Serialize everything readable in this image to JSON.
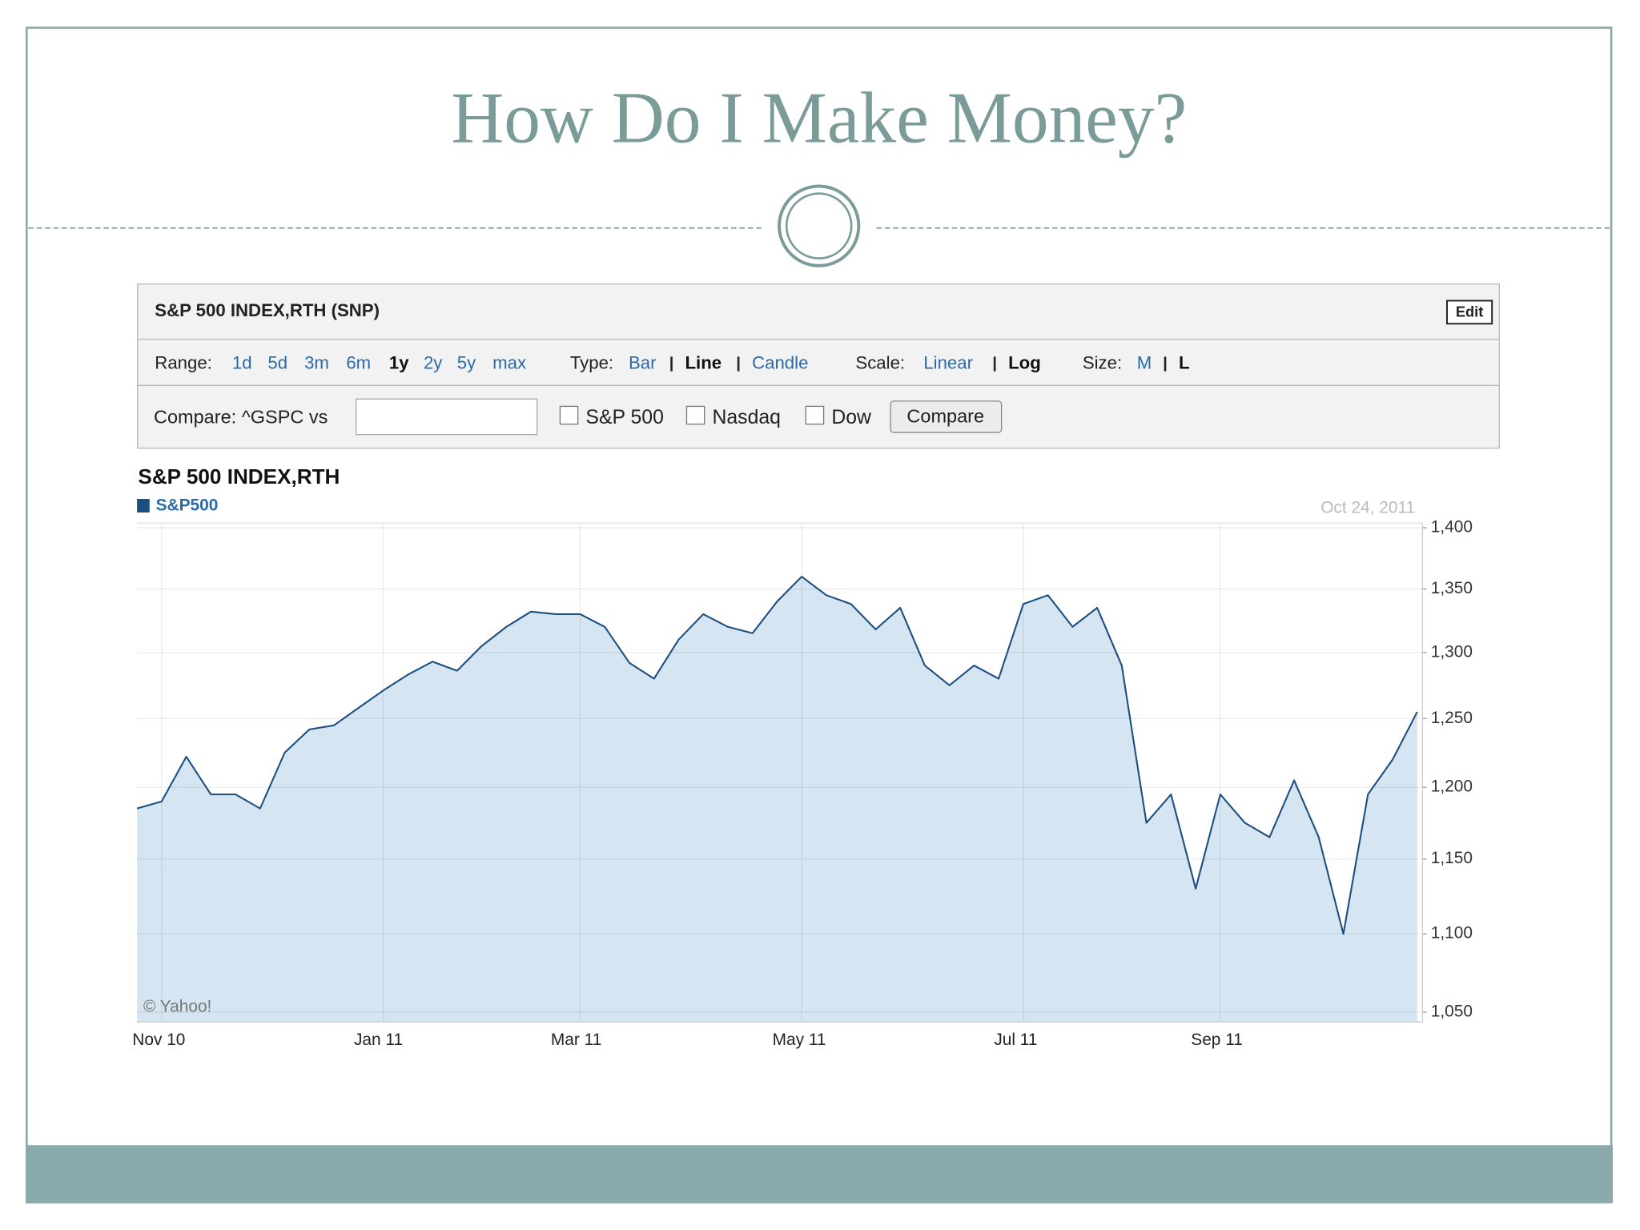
{
  "slide": {
    "title": "How Do I Make Money?"
  },
  "panel": {
    "header": "S&P 500 INDEX,RTH (SNP)",
    "edit": "Edit",
    "range": {
      "label": "Range:",
      "options": [
        "1d",
        "5d",
        "3m",
        "6m",
        "1y",
        "2y",
        "5y",
        "max"
      ],
      "selected": 4
    },
    "type": {
      "label": "Type:",
      "options": [
        "Bar",
        "Line",
        "Candle"
      ],
      "selected": 1
    },
    "scale": {
      "label": "Scale:",
      "options": [
        "Linear",
        "Log"
      ],
      "selected": 1
    },
    "size": {
      "label": "Size:",
      "options": [
        "M",
        "L"
      ],
      "selected": 1
    },
    "compare": {
      "label": "Compare: ^GSPC vs",
      "checkboxes": [
        "S&P 500",
        "Nasdaq",
        "Dow"
      ],
      "button": "Compare"
    }
  },
  "chart_data": {
    "type": "area",
    "title": "S&P 500 INDEX,RTH",
    "date_label": "Oct 24, 2011",
    "credit": "© Yahoo!",
    "categories": [
      null,
      "Nov 10",
      null,
      null,
      null,
      null,
      null,
      null,
      null,
      null,
      "Jan 11",
      null,
      null,
      null,
      null,
      null,
      null,
      null,
      "Mar 11",
      null,
      null,
      null,
      null,
      null,
      null,
      null,
      null,
      "May 11",
      null,
      null,
      null,
      null,
      null,
      null,
      null,
      null,
      "Jul 11",
      null,
      null,
      null,
      null,
      null,
      null,
      null,
      "Sep 11",
      null,
      null,
      null,
      null,
      null,
      null,
      null,
      null
    ],
    "series": [
      {
        "name": "S&P500",
        "color": "#1c4f80",
        "fill": "#d5e5f1",
        "values": [
          1185,
          1190,
          1222,
          1195,
          1195,
          1185,
          1225,
          1242,
          1245,
          1258,
          1271,
          1283,
          1293,
          1286,
          1305,
          1320,
          1332,
          1330,
          1330,
          1320,
          1292,
          1280,
          1310,
          1330,
          1320,
          1315,
          1340,
          1360,
          1345,
          1338,
          1318,
          1335,
          1290,
          1275,
          1290,
          1280,
          1338,
          1345,
          1320,
          1335,
          1290,
          1175,
          1195,
          1130,
          1195,
          1175,
          1165,
          1205,
          1165,
          1100,
          1195,
          1220,
          1255
        ]
      }
    ],
    "log": true,
    "ylim": [
      1044,
      1404
    ],
    "yticks": [
      {
        "value": 1050,
        "label": "1,050"
      },
      {
        "value": 1100,
        "label": "1,100"
      },
      {
        "value": 1150,
        "label": "1,150"
      },
      {
        "value": 1200,
        "label": "1,200"
      },
      {
        "value": 1250,
        "label": "1,250"
      },
      {
        "value": 1300,
        "label": "1,300"
      },
      {
        "value": 1350,
        "label": "1,350"
      },
      {
        "value": 1400,
        "label": "1,400"
      }
    ],
    "grid": true
  }
}
